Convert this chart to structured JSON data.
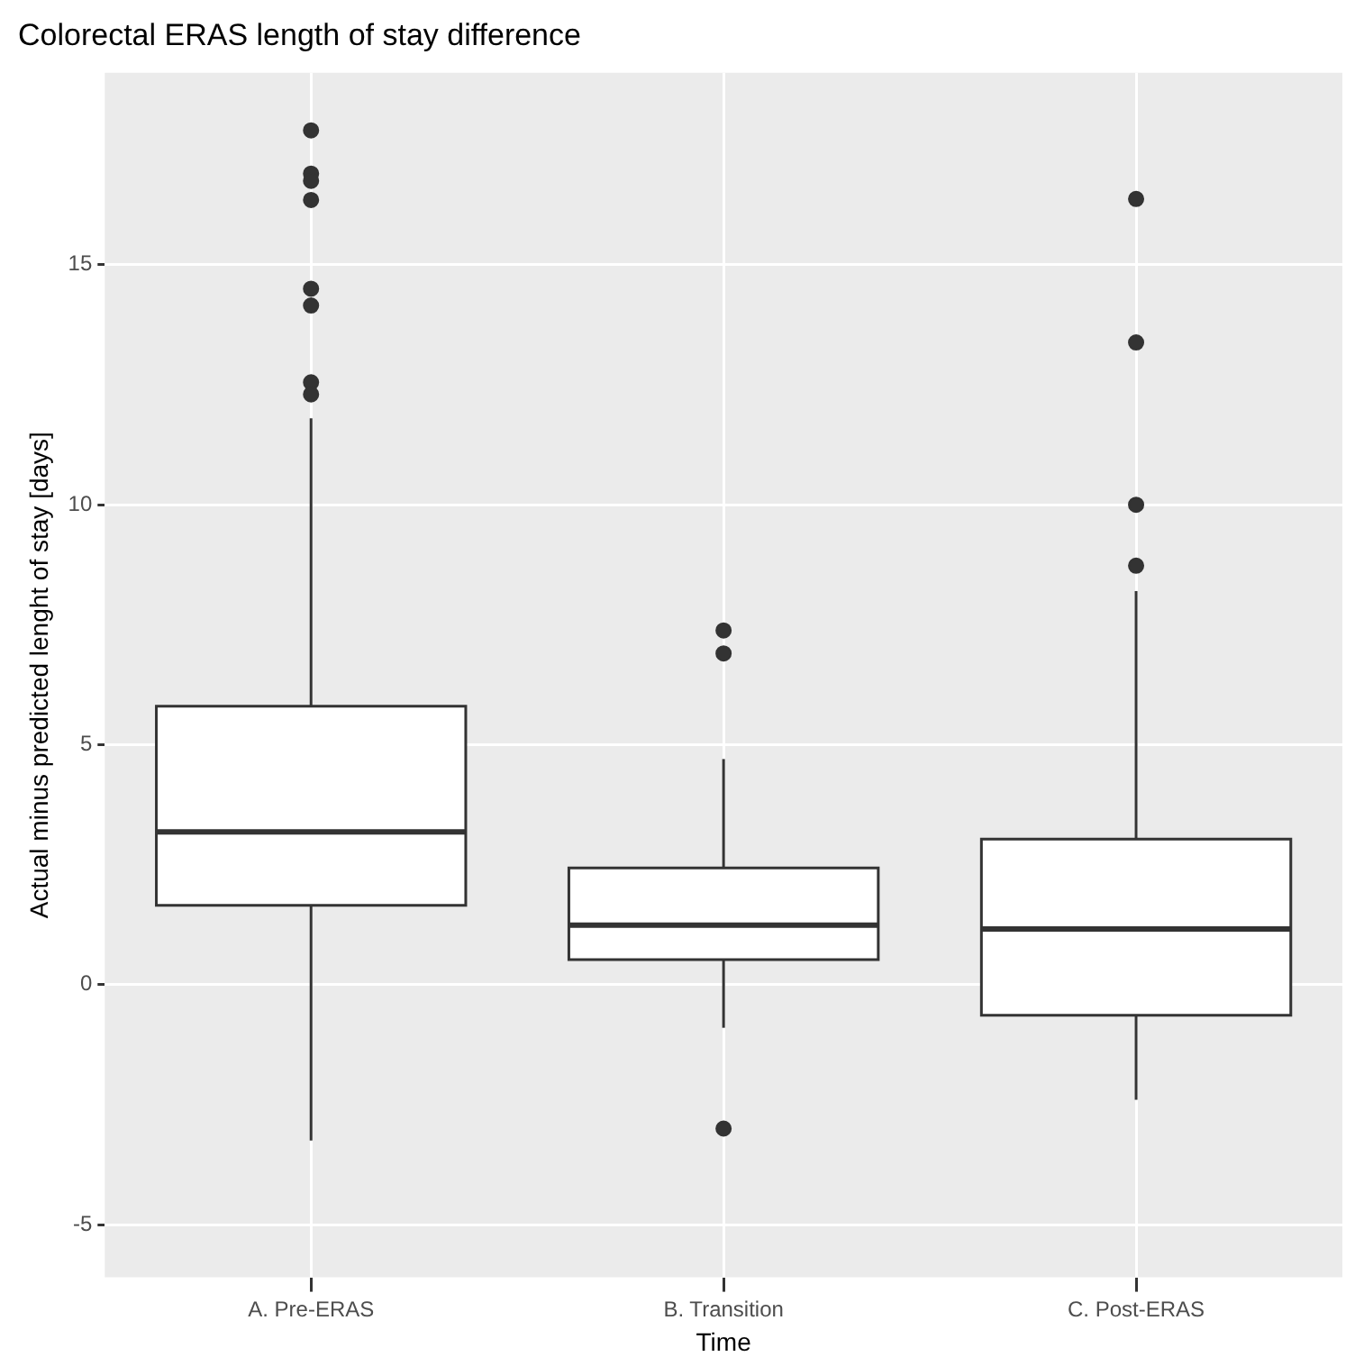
{
  "chart_data": {
    "type": "box",
    "title": "Colorectal ERAS length of stay difference",
    "xlabel": "Time",
    "ylabel": "Actual minus predicted lenght of stay [days]",
    "categories": [
      "A. Pre-ERAS",
      "B. Transition",
      "C. Post-ERAS"
    ],
    "boxes": [
      {
        "low": -3.25,
        "q1": 1.65,
        "median": 3.18,
        "q3": 5.8,
        "high": 11.8,
        "outliers": [
          17.8,
          16.9,
          16.75,
          16.35,
          14.5,
          14.15,
          12.55,
          12.3
        ]
      },
      {
        "low": -0.9,
        "q1": 0.52,
        "median": 1.24,
        "q3": 2.43,
        "high": 4.7,
        "outliers": [
          7.38,
          6.9,
          -3.0
        ]
      },
      {
        "low": -2.4,
        "q1": -0.64,
        "median": 1.16,
        "q3": 3.03,
        "high": 8.2,
        "outliers": [
          16.37,
          13.38,
          10.0,
          8.73
        ]
      }
    ],
    "color": "#333333",
    "ylim": [
      -6.1,
      19.0
    ],
    "yticks": [
      -5,
      0,
      5,
      10,
      15
    ],
    "grid": true
  }
}
